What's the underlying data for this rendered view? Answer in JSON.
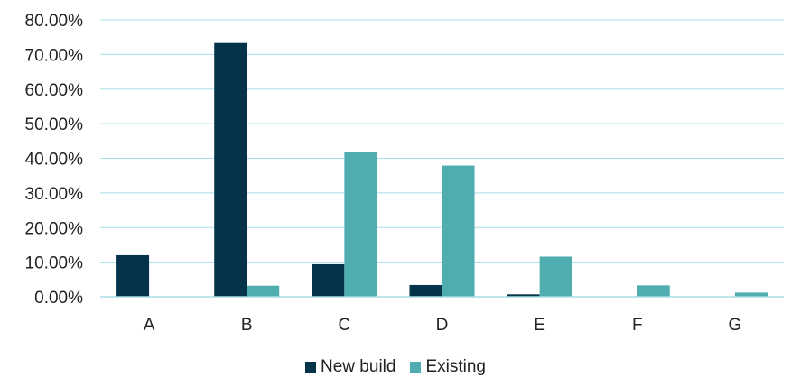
{
  "chart_data": {
    "type": "bar",
    "categories": [
      "A",
      "B",
      "C",
      "D",
      "E",
      "F",
      "G"
    ],
    "series": [
      {
        "name": "New build",
        "color": "#053349",
        "values": [
          12.0,
          73.3,
          9.4,
          3.4,
          0.7,
          0.05,
          0.0
        ]
      },
      {
        "name": "Existing",
        "color": "#4FADB0",
        "values": [
          0.1,
          3.2,
          41.8,
          37.9,
          11.6,
          3.3,
          1.2
        ]
      }
    ],
    "yticks": [
      "0.00%",
      "10.00%",
      "20.00%",
      "30.00%",
      "40.00%",
      "50.00%",
      "60.00%",
      "70.00%",
      "80.00%"
    ],
    "ylim": [
      0,
      80
    ],
    "grid": true,
    "gridColor": "#A9DDE6",
    "legendPlacement": "bottom"
  }
}
